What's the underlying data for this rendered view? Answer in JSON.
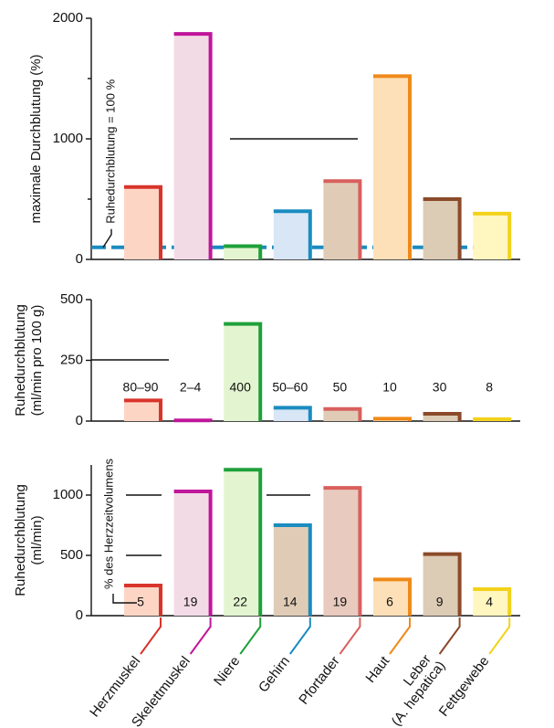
{
  "chart_data": [
    {
      "type": "bar",
      "ylabel": [
        "maximale Durchblutung (%)"
      ],
      "values": [
        600,
        1870,
        110,
        400,
        650,
        1520,
        500,
        380
      ],
      "ylim": [
        0,
        2000
      ],
      "yticks": [
        0,
        1000,
        2000
      ],
      "minor_yticks": [
        500,
        1500
      ],
      "reference_line": {
        "value": 100,
        "label": "Ruhedurchblutung = 100 %",
        "color": "#1a8cc0"
      },
      "colors": [
        "#d9342b",
        "#c0169a",
        "#1fa03a",
        "#1a8cc0",
        "#d9605e",
        "#ef8a1a",
        "#8b4a2a",
        "#f2d21a"
      ],
      "fill_colors": [
        "#fdd5c5",
        "#f3dbe6",
        "#e3f5d0",
        "#d8e6f5",
        "#e0ccb6",
        "#fde0b8",
        "#dccbb5",
        "#fff6c0"
      ]
    },
    {
      "type": "bar",
      "ylabel": [
        "Ruhedurchblutung",
        "(ml/min pro 100 g)"
      ],
      "values": [
        85,
        3,
        400,
        55,
        50,
        10,
        30,
        8
      ],
      "value_labels": [
        "80–90",
        "2–4",
        "400",
        "50–60",
        "50",
        "10",
        "30",
        "8"
      ],
      "ylim": [
        0,
        500
      ],
      "yticks": [
        0,
        250,
        500
      ],
      "colors": [
        "#d9342b",
        "#c0169a",
        "#1fa03a",
        "#1a8cc0",
        "#d9605e",
        "#ef8a1a",
        "#8b4a2a",
        "#f2d21a"
      ],
      "fill_colors": [
        "#fdd5c5",
        "#f3dbe6",
        "#e3f5d0",
        "#d8e6f5",
        "#e0ccb6",
        "#fde0b8",
        "#dccbb5",
        "#fff6c0"
      ]
    },
    {
      "type": "bar",
      "ylabel": [
        "Ruhedurchblutung",
        "(ml/min)"
      ],
      "categories": [
        "Herzmuskel",
        "Skelettmuskel",
        "Niere",
        "Gehirn",
        "Pfortader",
        "Haut",
        "Leber (A. hepatica)",
        "Fettgewebe"
      ],
      "values": [
        250,
        1030,
        1210,
        750,
        1060,
        300,
        510,
        220
      ],
      "percent_annotation": "% des Herzzeitvolumens",
      "percent": [
        5,
        19,
        22,
        14,
        19,
        6,
        9,
        4
      ],
      "ylim": [
        0,
        1250
      ],
      "yticks": [
        0,
        500,
        1000
      ],
      "colors": [
        "#d9342b",
        "#c0169a",
        "#1fa03a",
        "#1a8cc0",
        "#d9605e",
        "#ef8a1a",
        "#8b4a2a",
        "#f2d21a"
      ],
      "fill_colors": [
        "#fdd5c5",
        "#f3dbe6",
        "#e3f5d0",
        "#e0ccb6",
        "#e8cabf",
        "#fde0b8",
        "#dccbb5",
        "#fff6c0"
      ]
    }
  ]
}
